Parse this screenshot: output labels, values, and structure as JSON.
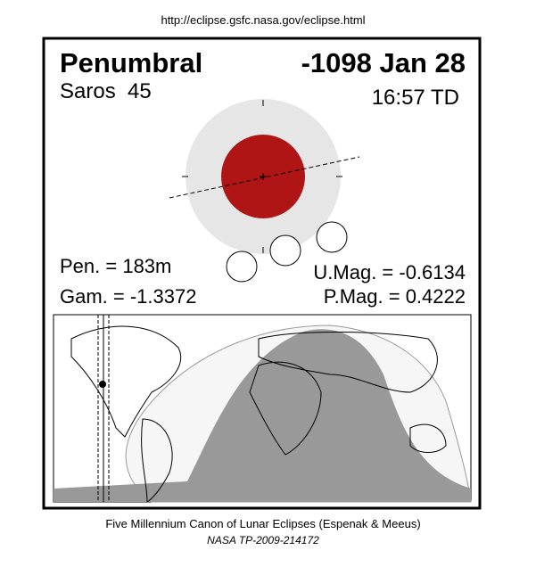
{
  "header": {
    "url": "http://eclipse.gsfc.nasa.gov/eclipse.html"
  },
  "eclipse": {
    "type": "Penumbral",
    "date": "-1098 Jan 28",
    "saros": "Saros  45",
    "time": "16:57 TD",
    "pen": "Pen. = 183m",
    "gam": "Gam. = -1.3372",
    "umag": "U.Mag. = -0.6134",
    "pmag": "P.Mag. = 0.4222"
  },
  "footer": {
    "line1": "Five Millennium Canon of Lunar Eclipses (Espenak & Meeus)",
    "line2": "NASA TP-2009-214172"
  }
}
